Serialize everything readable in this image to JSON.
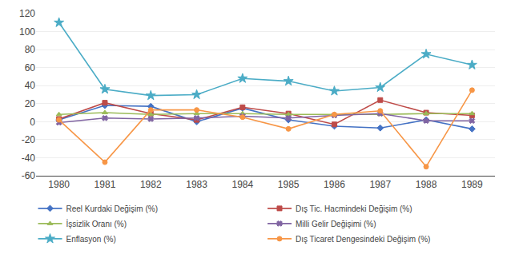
{
  "chart_data": {
    "type": "line",
    "x": [
      1980,
      1981,
      1982,
      1983,
      1984,
      1985,
      1986,
      1987,
      1988,
      1989
    ],
    "xlim": [
      1979.5,
      1989.5
    ],
    "xticks": [
      1980,
      1981,
      1982,
      1983,
      1984,
      1985,
      1986,
      1987,
      1988,
      1989
    ],
    "ylim": [
      -60,
      120
    ],
    "yticks": [
      -60,
      -40,
      -20,
      0,
      20,
      40,
      60,
      80,
      100,
      120
    ],
    "grid": true,
    "legend": "bottom",
    "series": [
      {
        "name": "Reel Kurdaki Değişim (%)",
        "color": "#4472C4",
        "marker": "diamond",
        "line_style": "solid",
        "values": [
          2,
          18,
          17,
          0,
          15,
          2,
          -5,
          -7,
          2,
          -8
        ]
      },
      {
        "name": "Dış Tic. Hacmindeki Değişim (%)",
        "color": "#BE4B48",
        "marker": "square",
        "line_style": "solid",
        "values": [
          3,
          21,
          9,
          2,
          16,
          9,
          -3,
          24,
          10,
          7
        ]
      },
      {
        "name": "İşsizlik Oranı (%)",
        "color": "#9BBB59",
        "marker": "triangle-up",
        "line_style": "solid",
        "values": [
          8,
          10,
          8,
          9,
          9,
          8,
          8,
          8,
          9,
          9
        ]
      },
      {
        "name": "Milli Gelir Değişimi (%)",
        "color": "#8064A2",
        "marker": "x",
        "line_style": "solid",
        "values": [
          -1,
          4,
          3,
          4,
          6,
          4,
          7,
          9,
          1,
          1
        ]
      },
      {
        "name": "Enflasyon (%)",
        "color": "#4BACC6",
        "marker": "star",
        "line_style": "solid",
        "values": [
          110,
          36,
          29,
          30,
          48,
          45,
          34,
          38,
          75,
          63
        ]
      },
      {
        "name": "Dış Ticaret Dengesindeki Değişim (%)",
        "color": "#F79646",
        "marker": "circle",
        "line_style": "solid",
        "values": [
          2,
          -45,
          13,
          13,
          5,
          -8,
          8,
          12,
          -50,
          35
        ]
      }
    ]
  }
}
